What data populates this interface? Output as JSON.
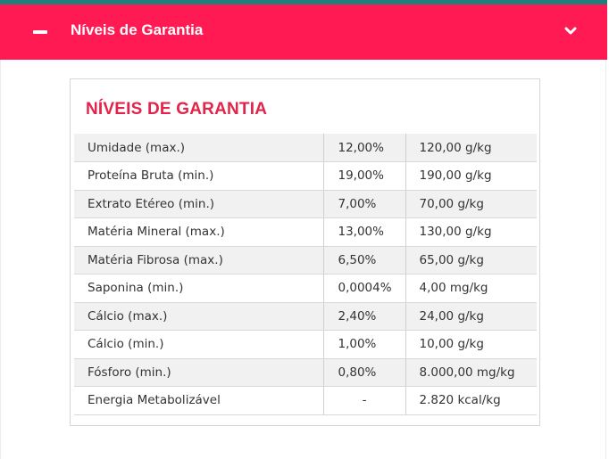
{
  "header": {
    "title": "Níveis de Garantia",
    "icons": [
      "minus-icon",
      "chevron-down-icon"
    ],
    "background_color": "#ff1a54",
    "accent_color": "#1f7f7a"
  },
  "card": {
    "title": "NÍVEIS DE GARANTIA",
    "title_color": "#e2244a"
  },
  "table": {
    "rows": [
      {
        "name": "Umidade (max.)",
        "percent": "12,00%",
        "amount": "120,00 g/kg"
      },
      {
        "name": "Proteína Bruta (min.)",
        "percent": "19,00%",
        "amount": "190,00 g/kg"
      },
      {
        "name": "Extrato Etéreo (min.)",
        "percent": "7,00%",
        "amount": "70,00 g/kg"
      },
      {
        "name": "Matéria Mineral (max.)",
        "percent": "13,00%",
        "amount": "130,00 g/kg"
      },
      {
        "name": "Matéria Fibrosa (max.)",
        "percent": "6,50%",
        "amount": "65,00 g/kg"
      },
      {
        "name": "Saponina (min.)",
        "percent": "0,0004%",
        "amount": "4,00 mg/kg"
      },
      {
        "name": "Cálcio (max.)",
        "percent": "2,40%",
        "amount": "24,00 g/kg"
      },
      {
        "name": "Cálcio (min.)",
        "percent": "1,00%",
        "amount": "10,00 g/kg"
      },
      {
        "name": "Fósforo (min.)",
        "percent": "0,80%",
        "amount": "8.000,00 mg/kg"
      },
      {
        "name": "Energia Metabolizável",
        "percent": "-",
        "amount": "2.820 kcal/kg"
      }
    ]
  }
}
